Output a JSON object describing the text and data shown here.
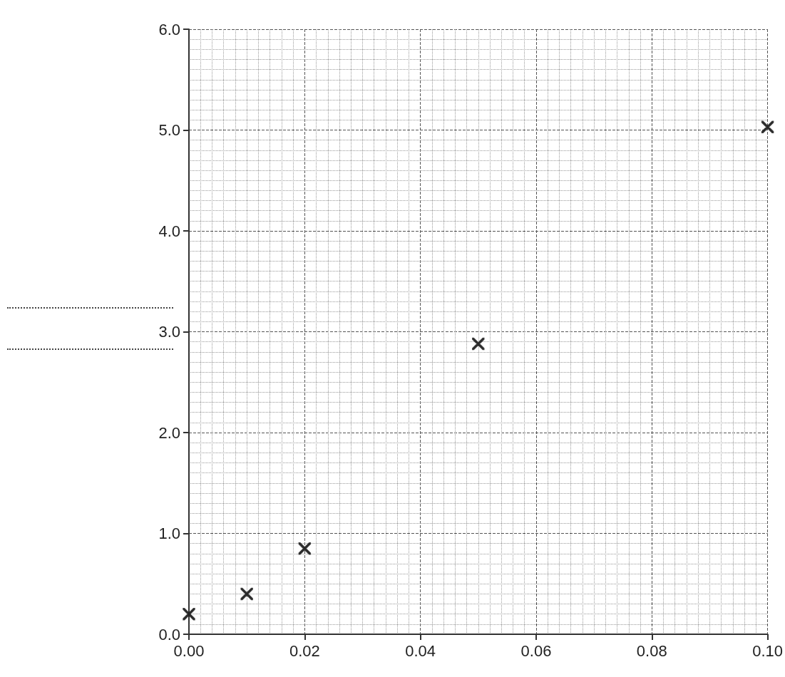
{
  "chart_data": {
    "type": "scatter",
    "x": [
      0.0,
      0.01,
      0.02,
      0.05,
      0.1
    ],
    "values": [
      0.2,
      0.4,
      0.85,
      2.88,
      5.03
    ],
    "color": "#222222",
    "marker": "cross",
    "grid": true,
    "xlim": [
      0,
      0.1
    ],
    "xticks": [
      {
        "value": 0,
        "label": "0.00"
      },
      {
        "value": 0.02,
        "label": "0.02"
      },
      {
        "value": 0.04,
        "label": "0.04"
      },
      {
        "value": 0.06,
        "label": "0.06"
      },
      {
        "value": 0.08,
        "label": "0.08"
      },
      {
        "value": 0.1,
        "label": "0.10"
      }
    ],
    "ylim": [
      0,
      6
    ],
    "yticks": [
      {
        "value": 0,
        "label": "0.0"
      },
      {
        "value": 1,
        "label": "1.0"
      },
      {
        "value": 2,
        "label": "2.0"
      },
      {
        "value": 3,
        "label": "3.0"
      },
      {
        "value": 4,
        "label": "4.0"
      },
      {
        "value": 5,
        "label": "5.0"
      },
      {
        "value": 6,
        "label": "6.0"
      }
    ]
  }
}
